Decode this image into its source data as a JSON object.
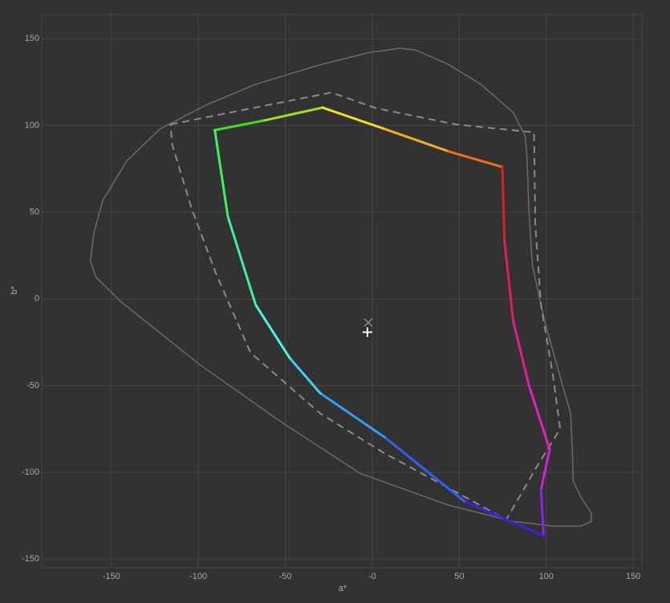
{
  "chart_data": {
    "type": "line",
    "xlabel": "a*",
    "ylabel": "b*",
    "xlim": [
      -190,
      155
    ],
    "ylim": [
      -155,
      164
    ],
    "xticks": [
      -150,
      -100,
      -50,
      {
        "value": 0,
        "label": "-0"
      },
      50,
      100,
      150
    ],
    "yticks": [
      150,
      100,
      50,
      0,
      -50,
      -100,
      -150
    ],
    "grid": true,
    "series": [
      {
        "color": "#6a6a6a",
        "dash": "solid",
        "closed": true,
        "x": [
          16,
          25,
          44,
          62,
          81,
          88,
          89,
          90,
          92,
          99,
          108,
          114,
          115,
          115.5,
          120,
          126,
          126,
          120,
          104,
          81,
          44,
          -7,
          -53,
          -99,
          -145,
          -159,
          -162,
          -160,
          -155,
          -141,
          -122,
          -95,
          -67,
          -30,
          -2
        ],
        "values": [
          144.5,
          143.5,
          135,
          124,
          107.5,
          93.6,
          80,
          52,
          19.6,
          -12.7,
          -45,
          -66,
          -87,
          -105,
          -114.4,
          -123.7,
          -128.3,
          -131,
          -131,
          -128.3,
          -119,
          -100.6,
          -70.5,
          -38,
          -1.2,
          12.7,
          22,
          38,
          56.6,
          79.7,
          98,
          112,
          123.7,
          135,
          142
        ]
      },
      {
        "color": "#8a8a8a",
        "dash": "dashed",
        "closed": true,
        "x": [
          -116,
          -23.5,
          2,
          48,
          93,
          93.7,
          97,
          104,
          108,
          95,
          77,
          53,
          7,
          -30,
          -70,
          -90,
          -103.8,
          -115
        ],
        "values": [
          100.6,
          119,
          110,
          100.6,
          96,
          42.8,
          -3.5,
          -45,
          -75,
          -96,
          -127.4,
          -114,
          -89,
          -66,
          -31,
          15,
          52,
          89
        ]
      },
      {
        "color": "gradient",
        "dash": "solid",
        "closed": true,
        "x": [
          -90.5,
          -62,
          -28.6,
          7,
          44,
          74.8,
          76,
          81,
          90,
          102,
          97,
          98.5,
          53,
          7,
          -30,
          -47.5,
          -67,
          -83
        ],
        "values": [
          97.3,
          102.9,
          110.3,
          98,
          85,
          76,
          33.5,
          -12.7,
          -49.7,
          -86.7,
          -110,
          -136.6,
          -116.7,
          -79.7,
          -54.3,
          -34,
          -3.5,
          47.4
        ],
        "colors": [
          "#40e020",
          "#a0e020",
          "#f0e020",
          "#f0b020",
          "#f07020",
          "#e02020",
          "#e0205a",
          "#e02090",
          "#e020c0",
          "#d020e0",
          "#9020f0",
          "#4020e0",
          "#3060f0",
          "#30a0f0",
          "#40d0f0",
          "#50f0e0",
          "#40f0a0",
          "#40f060"
        ]
      }
    ],
    "markers": [
      {
        "marker": "x",
        "color": "#9a9a9a",
        "x": -2.3,
        "y": -13.6
      },
      {
        "marker": "+",
        "color": "#f0f0f0",
        "x": -2.8,
        "y": -19.2
      }
    ]
  }
}
